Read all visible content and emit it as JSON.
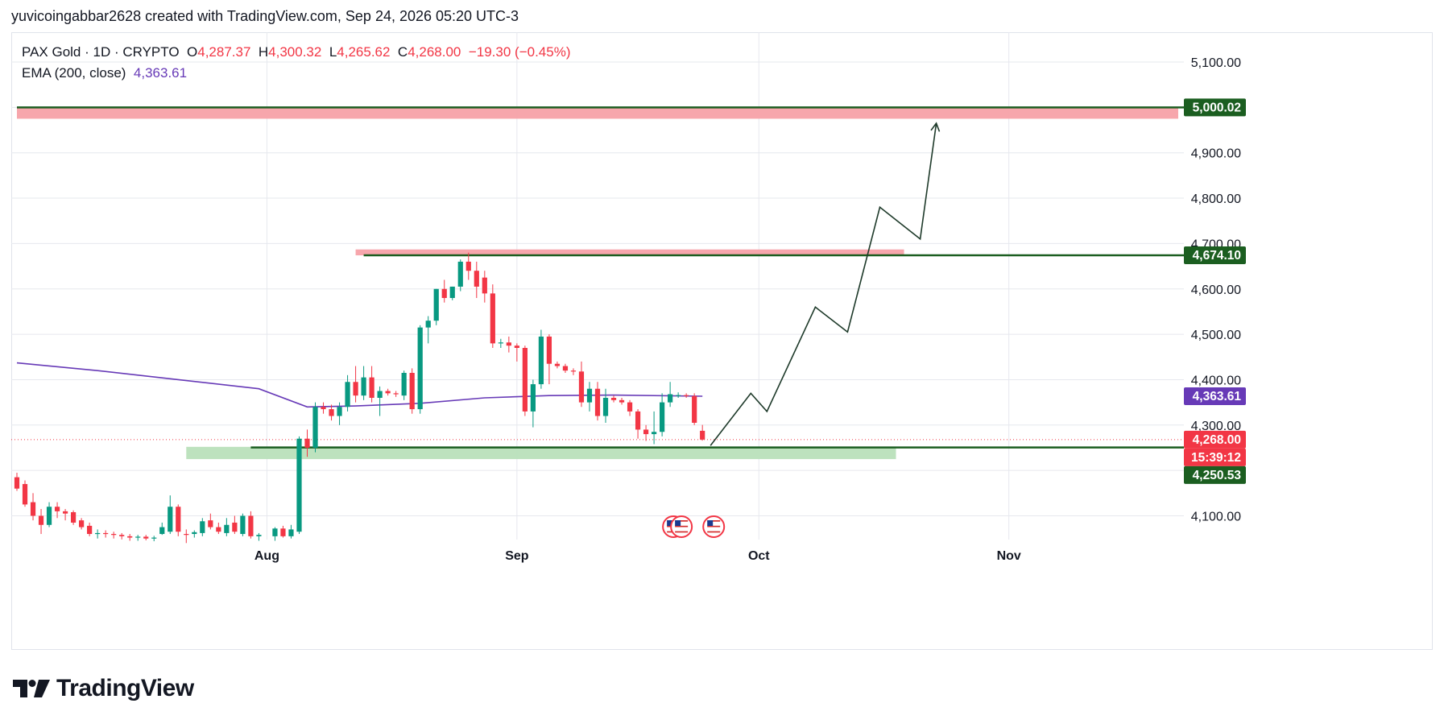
{
  "header": {
    "credit": "yuvicoingabbar2628 created with TradingView.com, Sep 24, 2026 05:20 UTC-3"
  },
  "legend": {
    "symbol": "PAX Gold · 1D · CRYPTO",
    "open_label": "O",
    "open": "4,287.37",
    "high_label": "H",
    "high": "4,300.32",
    "low_label": "L",
    "low": "4,265.62",
    "close_label": "C",
    "close": "4,268.00",
    "change": "−19.30 (−0.45%)",
    "ema_label": "EMA (200, close)",
    "ema_value": "4,363.61"
  },
  "colors": {
    "up": "#089981",
    "down": "#f23645",
    "ema": "#673ab7",
    "level_line": "#1b5e20",
    "resist_zone": "#f7a1a8",
    "support_zone": "#b9e0bb",
    "grid": "#e6e8ee"
  },
  "brand": {
    "wordmark": "TradingView",
    "logo_icon": "tradingview-logo-icon"
  },
  "chart_data": {
    "type": "candlestick",
    "title": "",
    "y_range": [
      4050,
      5170
    ],
    "y_ticks": [
      "5,100.00",
      "4,900.00",
      "4,800.00",
      "4,700.00",
      "4,600.00",
      "4,500.00",
      "4,400.00",
      "4,300.00",
      "4,100.00"
    ],
    "y_tick_values": [
      5100,
      4900,
      4800,
      4700,
      4600,
      4500,
      4400,
      4300,
      4100
    ],
    "x_ticks": [
      {
        "label": "Aug",
        "date": "2026-08-01"
      },
      {
        "label": "Sep",
        "date": "2026-09-01"
      },
      {
        "label": "Oct",
        "date": "2026-10-01"
      },
      {
        "label": "Nov",
        "date": "2026-11-01"
      }
    ],
    "x_range": [
      "2026-07-01",
      "2026-11-22"
    ],
    "candles": [
      {
        "date": "2026-07-01",
        "o": 4185,
        "h": 4195,
        "l": 4155,
        "c": 4160
      },
      {
        "date": "2026-07-02",
        "o": 4170,
        "h": 4178,
        "l": 4120,
        "c": 4125
      },
      {
        "date": "2026-07-03",
        "o": 4130,
        "h": 4150,
        "l": 4090,
        "c": 4100
      },
      {
        "date": "2026-07-04",
        "o": 4100,
        "h": 4115,
        "l": 4060,
        "c": 4080
      },
      {
        "date": "2026-07-05",
        "o": 4080,
        "h": 4130,
        "l": 4075,
        "c": 4120
      },
      {
        "date": "2026-07-06",
        "o": 4120,
        "h": 4130,
        "l": 4095,
        "c": 4110
      },
      {
        "date": "2026-07-07",
        "o": 4110,
        "h": 4115,
        "l": 4090,
        "c": 4105
      },
      {
        "date": "2026-07-08",
        "o": 4108,
        "h": 4112,
        "l": 4080,
        "c": 4085
      },
      {
        "date": "2026-07-09",
        "o": 4090,
        "h": 4095,
        "l": 4070,
        "c": 4075
      },
      {
        "date": "2026-07-10",
        "o": 4078,
        "h": 4085,
        "l": 4055,
        "c": 4060
      },
      {
        "date": "2026-07-11",
        "o": 4060,
        "h": 4070,
        "l": 4050,
        "c": 4062
      },
      {
        "date": "2026-07-12",
        "o": 4062,
        "h": 4068,
        "l": 4052,
        "c": 4060
      },
      {
        "date": "2026-07-13",
        "o": 4060,
        "h": 4065,
        "l": 4050,
        "c": 4058
      },
      {
        "date": "2026-07-14",
        "o": 4058,
        "h": 4062,
        "l": 4048,
        "c": 4055
      },
      {
        "date": "2026-07-15",
        "o": 4055,
        "h": 4060,
        "l": 4045,
        "c": 4052
      },
      {
        "date": "2026-07-16",
        "o": 4052,
        "h": 4058,
        "l": 4045,
        "c": 4054
      },
      {
        "date": "2026-07-17",
        "o": 4054,
        "h": 4058,
        "l": 4046,
        "c": 4050
      },
      {
        "date": "2026-07-18",
        "o": 4050,
        "h": 4056,
        "l": 4044,
        "c": 4052
      },
      {
        "date": "2026-07-19",
        "o": 4060,
        "h": 4085,
        "l": 4058,
        "c": 4075
      },
      {
        "date": "2026-07-20",
        "o": 4065,
        "h": 4145,
        "l": 4060,
        "c": 4120
      },
      {
        "date": "2026-07-21",
        "o": 4120,
        "h": 4125,
        "l": 4055,
        "c": 4065
      },
      {
        "date": "2026-07-22",
        "o": 4060,
        "h": 4070,
        "l": 4040,
        "c": 4058
      },
      {
        "date": "2026-07-23",
        "o": 4060,
        "h": 4068,
        "l": 4052,
        "c": 4064
      },
      {
        "date": "2026-07-24",
        "o": 4062,
        "h": 4095,
        "l": 4055,
        "c": 4088
      },
      {
        "date": "2026-07-25",
        "o": 4090,
        "h": 4105,
        "l": 4070,
        "c": 4075
      },
      {
        "date": "2026-07-26",
        "o": 4075,
        "h": 4085,
        "l": 4060,
        "c": 4065
      },
      {
        "date": "2026-07-27",
        "o": 4062,
        "h": 4095,
        "l": 4055,
        "c": 4080
      },
      {
        "date": "2026-07-28",
        "o": 4085,
        "h": 4100,
        "l": 4060,
        "c": 4065
      },
      {
        "date": "2026-07-29",
        "o": 4060,
        "h": 4105,
        "l": 4055,
        "c": 4100
      },
      {
        "date": "2026-07-30",
        "o": 4100,
        "h": 4110,
        "l": 4050,
        "c": 4055
      },
      {
        "date": "2026-07-31",
        "o": 4055,
        "h": 4062,
        "l": 4045,
        "c": 4058
      },
      {
        "date": "2026-08-02",
        "o": 4055,
        "h": 4075,
        "l": 4045,
        "c": 4072
      },
      {
        "date": "2026-08-03",
        "o": 4072,
        "h": 4078,
        "l": 4052,
        "c": 4055
      },
      {
        "date": "2026-08-04",
        "o": 4055,
        "h": 4080,
        "l": 4050,
        "c": 4070
      },
      {
        "date": "2026-08-05",
        "o": 4065,
        "h": 4275,
        "l": 4060,
        "c": 4270
      },
      {
        "date": "2026-08-06",
        "o": 4270,
        "h": 4290,
        "l": 4230,
        "c": 4250
      },
      {
        "date": "2026-08-07",
        "o": 4250,
        "h": 4350,
        "l": 4240,
        "c": 4340
      },
      {
        "date": "2026-08-08",
        "o": 4340,
        "h": 4350,
        "l": 4325,
        "c": 4335
      },
      {
        "date": "2026-08-09",
        "o": 4335,
        "h": 4345,
        "l": 4310,
        "c": 4320
      },
      {
        "date": "2026-08-10",
        "o": 4320,
        "h": 4350,
        "l": 4300,
        "c": 4340
      },
      {
        "date": "2026-08-11",
        "o": 4340,
        "h": 4410,
        "l": 4330,
        "c": 4395
      },
      {
        "date": "2026-08-12",
        "o": 4395,
        "h": 4430,
        "l": 4350,
        "c": 4365
      },
      {
        "date": "2026-08-13",
        "o": 4365,
        "h": 4430,
        "l": 4355,
        "c": 4405
      },
      {
        "date": "2026-08-14",
        "o": 4405,
        "h": 4430,
        "l": 4350,
        "c": 4360
      },
      {
        "date": "2026-08-15",
        "o": 4360,
        "h": 4385,
        "l": 4320,
        "c": 4375
      },
      {
        "date": "2026-08-16",
        "o": 4375,
        "h": 4380,
        "l": 4365,
        "c": 4370
      },
      {
        "date": "2026-08-17",
        "o": 4370,
        "h": 4375,
        "l": 4362,
        "c": 4368
      },
      {
        "date": "2026-08-18",
        "o": 4365,
        "h": 4420,
        "l": 4355,
        "c": 4415
      },
      {
        "date": "2026-08-19",
        "o": 4415,
        "h": 4425,
        "l": 4325,
        "c": 4335
      },
      {
        "date": "2026-08-20",
        "o": 4335,
        "h": 4520,
        "l": 4325,
        "c": 4515
      },
      {
        "date": "2026-08-21",
        "o": 4515,
        "h": 4540,
        "l": 4480,
        "c": 4530
      },
      {
        "date": "2026-08-22",
        "o": 4530,
        "h": 4600,
        "l": 4520,
        "c": 4600
      },
      {
        "date": "2026-08-23",
        "o": 4600,
        "h": 4620,
        "l": 4570,
        "c": 4580
      },
      {
        "date": "2026-08-24",
        "o": 4580,
        "h": 4605,
        "l": 4575,
        "c": 4605
      },
      {
        "date": "2026-08-25",
        "o": 4605,
        "h": 4665,
        "l": 4595,
        "c": 4660
      },
      {
        "date": "2026-08-26",
        "o": 4660,
        "h": 4680,
        "l": 4620,
        "c": 4640
      },
      {
        "date": "2026-08-27",
        "o": 4640,
        "h": 4660,
        "l": 4580,
        "c": 4605
      },
      {
        "date": "2026-08-28",
        "o": 4625,
        "h": 4640,
        "l": 4570,
        "c": 4590
      },
      {
        "date": "2026-08-29",
        "o": 4590,
        "h": 4610,
        "l": 4470,
        "c": 4480
      },
      {
        "date": "2026-08-30",
        "o": 4480,
        "h": 4490,
        "l": 4470,
        "c": 4482
      },
      {
        "date": "2026-08-31",
        "o": 4482,
        "h": 4495,
        "l": 4460,
        "c": 4475
      },
      {
        "date": "2026-09-01",
        "o": 4475,
        "h": 4480,
        "l": 4440,
        "c": 4470
      },
      {
        "date": "2026-09-02",
        "o": 4470,
        "h": 4475,
        "l": 4320,
        "c": 4330
      },
      {
        "date": "2026-09-03",
        "o": 4330,
        "h": 4400,
        "l": 4295,
        "c": 4390
      },
      {
        "date": "2026-09-04",
        "o": 4390,
        "h": 4510,
        "l": 4380,
        "c": 4495
      },
      {
        "date": "2026-09-05",
        "o": 4495,
        "h": 4500,
        "l": 4390,
        "c": 4435
      },
      {
        "date": "2026-09-06",
        "o": 4435,
        "h": 4440,
        "l": 4425,
        "c": 4430
      },
      {
        "date": "2026-09-07",
        "o": 4430,
        "h": 4435,
        "l": 4415,
        "c": 4420
      },
      {
        "date": "2026-09-08",
        "o": 4420,
        "h": 4425,
        "l": 4410,
        "c": 4418
      },
      {
        "date": "2026-09-09",
        "o": 4418,
        "h": 4440,
        "l": 4340,
        "c": 4350
      },
      {
        "date": "2026-09-10",
        "o": 4350,
        "h": 4395,
        "l": 4330,
        "c": 4380
      },
      {
        "date": "2026-09-11",
        "o": 4380,
        "h": 4395,
        "l": 4310,
        "c": 4320
      },
      {
        "date": "2026-09-12",
        "o": 4320,
        "h": 4380,
        "l": 4305,
        "c": 4360
      },
      {
        "date": "2026-09-13",
        "o": 4360,
        "h": 4365,
        "l": 4350,
        "c": 4355
      },
      {
        "date": "2026-09-14",
        "o": 4355,
        "h": 4360,
        "l": 4345,
        "c": 4350
      },
      {
        "date": "2026-09-15",
        "o": 4350,
        "h": 4355,
        "l": 4320,
        "c": 4330
      },
      {
        "date": "2026-09-16",
        "o": 4330,
        "h": 4335,
        "l": 4270,
        "c": 4290
      },
      {
        "date": "2026-09-17",
        "o": 4290,
        "h": 4300,
        "l": 4265,
        "c": 4280
      },
      {
        "date": "2026-09-18",
        "o": 4280,
        "h": 4330,
        "l": 4258,
        "c": 4285
      },
      {
        "date": "2026-09-19",
        "o": 4285,
        "h": 4370,
        "l": 4275,
        "c": 4350
      },
      {
        "date": "2026-09-20",
        "o": 4350,
        "h": 4395,
        "l": 4340,
        "c": 4368
      },
      {
        "date": "2026-09-21",
        "o": 4365,
        "h": 4372,
        "l": 4360,
        "c": 4366
      },
      {
        "date": "2026-09-22",
        "o": 4366,
        "h": 4370,
        "l": 4360,
        "c": 4364
      },
      {
        "date": "2026-09-23",
        "o": 4364,
        "h": 4370,
        "l": 4300,
        "c": 4305
      },
      {
        "date": "2026-09-24",
        "o": 4287.37,
        "h": 4300.32,
        "l": 4265.62,
        "c": 4268.0
      }
    ],
    "ema": {
      "name": "EMA (200, close)",
      "points": [
        {
          "date": "2026-07-01",
          "v": 4437
        },
        {
          "date": "2026-07-11",
          "v": 4420
        },
        {
          "date": "2026-07-21",
          "v": 4400
        },
        {
          "date": "2026-07-31",
          "v": 4380
        },
        {
          "date": "2026-08-06",
          "v": 4340
        },
        {
          "date": "2026-08-12",
          "v": 4342
        },
        {
          "date": "2026-08-20",
          "v": 4348
        },
        {
          "date": "2026-08-28",
          "v": 4360
        },
        {
          "date": "2026-09-05",
          "v": 4365
        },
        {
          "date": "2026-09-13",
          "v": 4366
        },
        {
          "date": "2026-09-24",
          "v": 4363.61
        }
      ]
    },
    "horizontal_levels": [
      {
        "value": 5000.02,
        "label": "5,000.02",
        "from": "2026-07-01",
        "to": "2026-11-22"
      },
      {
        "value": 4674.1,
        "label": "4,674.10",
        "from": "2026-08-13",
        "to": "2026-11-22"
      },
      {
        "value": 4250.53,
        "label": "4,250.53",
        "from": "2026-07-30",
        "to": "2026-11-22"
      }
    ],
    "zones": [
      {
        "type": "resistance",
        "y1": 4975,
        "y2": 5000,
        "from": "2026-07-01",
        "to": "2026-11-22"
      },
      {
        "type": "resistance",
        "y1": 4674,
        "y2": 4687,
        "from": "2026-08-12",
        "to": "2026-10-19"
      },
      {
        "type": "support",
        "y1": 4225,
        "y2": 4252,
        "from": "2026-07-22",
        "to": "2026-10-18"
      }
    ],
    "projection_path": [
      {
        "date": "2026-09-25",
        "v": 4255
      },
      {
        "date": "2026-09-30",
        "v": 4370
      },
      {
        "date": "2026-10-02",
        "v": 4330
      },
      {
        "date": "2026-10-08",
        "v": 4560
      },
      {
        "date": "2026-10-12",
        "v": 4505
      },
      {
        "date": "2026-10-16",
        "v": 4780
      },
      {
        "date": "2026-10-21",
        "v": 4710
      },
      {
        "date": "2026-10-23",
        "v": 4965
      }
    ],
    "price_labels": [
      {
        "text": "5,000.02",
        "value": 5000.02,
        "color": "#1b5e20"
      },
      {
        "text": "4,674.10",
        "value": 4674.1,
        "color": "#1b5e20"
      },
      {
        "text": "4,363.61",
        "value": 4363.61,
        "color": "#673ab7"
      },
      {
        "text": "4,268.00",
        "value": 4268.0,
        "color": "#f23645"
      },
      {
        "text": "15:39:12",
        "value": 4268.0,
        "color": "#f23645"
      },
      {
        "text": "4,250.53",
        "value": 4250.53,
        "color": "#1b5e20"
      }
    ],
    "events": [
      {
        "date": "2026-09-20",
        "icon": "us-flag-icon"
      },
      {
        "date": "2026-09-21",
        "icon": "us-flag-icon"
      },
      {
        "date": "2026-09-25",
        "icon": "us-flag-icon"
      }
    ],
    "grid": true,
    "legend_position": "top-left"
  }
}
